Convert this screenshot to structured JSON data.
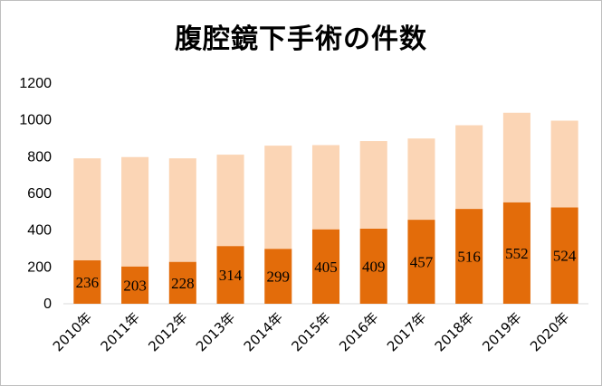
{
  "chart_data": {
    "type": "bar",
    "stacked": true,
    "title": "腹腔鏡下手術の件数",
    "xlabel": "",
    "ylabel": "",
    "ylim": [
      0,
      1200
    ],
    "yticks": [
      0,
      200,
      400,
      600,
      800,
      1000,
      1200
    ],
    "grid": false,
    "legend": "none",
    "categories": [
      "2010年",
      "2011年",
      "2012年",
      "2013年",
      "2014年",
      "2015年",
      "2016年",
      "2017年",
      "2018年",
      "2019年",
      "2020年"
    ],
    "series": [
      {
        "values": [
          236,
          203,
          228,
          314,
          299,
          405,
          409,
          457,
          516,
          552,
          524
        ],
        "color": "#e36c0a",
        "show_labels": true
      },
      {
        "values": [
          555,
          595,
          563,
          497,
          561,
          458,
          476,
          442,
          455,
          487,
          472
        ],
        "color": "#fbd5b5",
        "show_labels": false
      }
    ]
  }
}
